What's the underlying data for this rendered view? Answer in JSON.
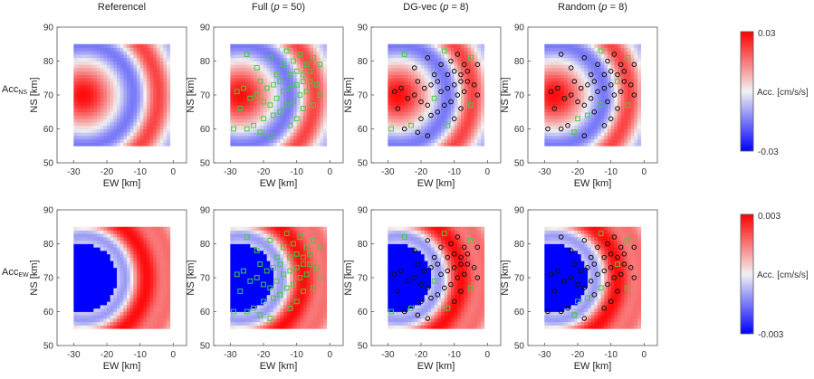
{
  "columns": [
    {
      "id": "ref",
      "title": "Referencel"
    },
    {
      "id": "full",
      "title_prefix": "Full (",
      "title_var": "p",
      "title_suffix": " = 50)"
    },
    {
      "id": "dg",
      "title_prefix": "DG-vec (",
      "title_var": "p",
      "title_suffix": " = 8)"
    },
    {
      "id": "rand",
      "title_prefix": "Random (",
      "title_var": "p",
      "title_suffix": " = 8)"
    }
  ],
  "rows": [
    {
      "id": "ns",
      "label_base": "Acc",
      "label_sub": "NS",
      "mode": "ns",
      "colorbar": {
        "max_label": "0.03",
        "min_label": "-0.03",
        "title": "Acc. [cm/s/s]"
      }
    },
    {
      "id": "ew",
      "label_base": "Acc",
      "label_sub": "EW",
      "mode": "ew",
      "colorbar": {
        "max_label": "0.003",
        "min_label": "-0.003",
        "title": "Acc. [cm/s/s]"
      }
    }
  ],
  "axes": {
    "xlabel": "EW [km]",
    "ylabel": "NS [km]",
    "xlim": [
      -35,
      4
    ],
    "ylim": [
      50,
      90
    ],
    "xticks": [
      -30,
      -20,
      -10,
      0
    ],
    "yticks": [
      50,
      60,
      70,
      80,
      90
    ],
    "data_extent": {
      "x": [
        -30,
        -1
      ],
      "y": [
        55,
        85
      ]
    }
  },
  "chart_data": {
    "type": "heatmap",
    "subtitle_note": "",
    "source_center": [
      -27,
      70
    ],
    "stations": [
      [
        -25,
        82
      ],
      [
        -22,
        78
      ],
      [
        -18,
        81
      ],
      [
        -16,
        76
      ],
      [
        -14,
        79
      ],
      [
        -13,
        83
      ],
      [
        -11,
        80
      ],
      [
        -9,
        82
      ],
      [
        -7,
        79
      ],
      [
        -5,
        81
      ],
      [
        -3,
        79
      ],
      [
        -6,
        77
      ],
      [
        -8,
        76
      ],
      [
        -10,
        77
      ],
      [
        -12,
        76
      ],
      [
        -15,
        74
      ],
      [
        -17,
        73
      ],
      [
        -19,
        72
      ],
      [
        -21,
        74
      ],
      [
        -26,
        72
      ],
      [
        -28,
        71
      ],
      [
        -24,
        69
      ],
      [
        -22,
        70
      ],
      [
        -20,
        68
      ],
      [
        -18,
        67
      ],
      [
        -16,
        69
      ],
      [
        -14,
        71
      ],
      [
        -12,
        72
      ],
      [
        -10,
        73
      ],
      [
        -8,
        74
      ],
      [
        -6,
        74
      ],
      [
        -4,
        73
      ],
      [
        -7,
        71
      ],
      [
        -9,
        70
      ],
      [
        -11,
        68
      ],
      [
        -13,
        67
      ],
      [
        -15,
        65
      ],
      [
        -17,
        64
      ],
      [
        -20,
        63
      ],
      [
        -23,
        61
      ],
      [
        -27,
        66
      ],
      [
        -29,
        60
      ],
      [
        -25,
        60
      ],
      [
        -21,
        59
      ],
      [
        -18,
        58
      ],
      [
        -12,
        61
      ],
      [
        -8,
        66
      ],
      [
        -5,
        67
      ],
      [
        -3,
        70
      ],
      [
        -10,
        63
      ]
    ],
    "selected_indices": {
      "dg": [
        0,
        5,
        9,
        25,
        39,
        41,
        45,
        47
      ],
      "rand": [
        5,
        9,
        29,
        35,
        37,
        38,
        43,
        47
      ]
    },
    "colormap": "blue-white-red"
  }
}
